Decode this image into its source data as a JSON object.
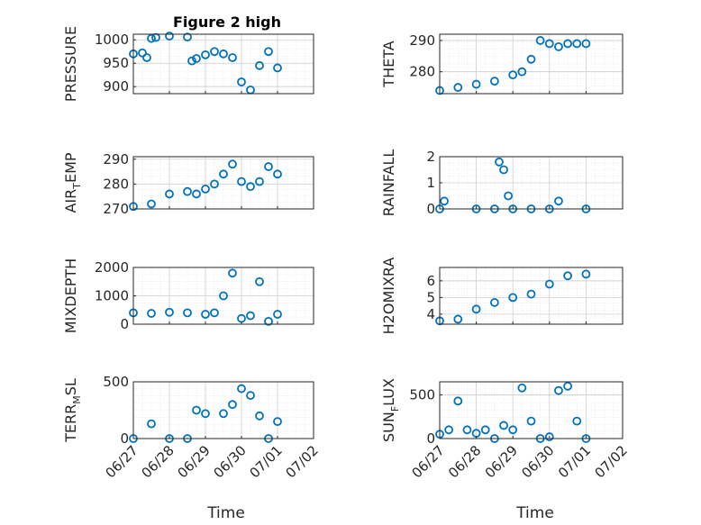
{
  "figure": {
    "title": "Figure 2 high",
    "xlabel": "Time"
  },
  "style": {
    "marker_color": "#0072BD",
    "axis_color": "#262626",
    "grid_color": "#dcdcdc",
    "minor_grid": true,
    "marker": "open-circle"
  },
  "x_axis": {
    "ticks": [
      "06/27",
      "06/28",
      "06/29",
      "06/30",
      "07/01",
      "07/02"
    ],
    "range": [
      "06/27",
      "07/02"
    ]
  },
  "chart_data": [
    {
      "type": "scatter",
      "ylabel": "PRESSURE",
      "ylim": [
        885,
        1012
      ],
      "yticks": [
        900,
        950,
        1000
      ],
      "x": [
        "06/27 00:00",
        "06/27 06:00",
        "06/27 09:00",
        "06/27 12:00",
        "06/27 15:00",
        "06/28 00:00",
        "06/28 12:00",
        "06/28 15:00",
        "06/28 18:00",
        "06/29 00:00",
        "06/29 06:00",
        "06/29 12:00",
        "06/29 18:00",
        "06/30 00:00",
        "06/30 06:00",
        "06/30 12:00",
        "06/30 18:00",
        "07/01 00:00"
      ],
      "y": [
        970,
        972,
        962,
        1003,
        1005,
        1008,
        1006,
        955,
        960,
        968,
        975,
        970,
        962,
        910,
        893,
        945,
        975,
        940
      ]
    },
    {
      "type": "scatter",
      "ylabel": "THETA",
      "ylim": [
        273,
        292
      ],
      "yticks": [
        280,
        290
      ],
      "x": [
        "06/27 00:00",
        "06/27 12:00",
        "06/28 00:00",
        "06/28 12:00",
        "06/29 00:00",
        "06/29 06:00",
        "06/29 12:00",
        "06/29 18:00",
        "06/30 00:00",
        "06/30 06:00",
        "06/30 12:00",
        "06/30 18:00",
        "07/01 00:00"
      ],
      "y": [
        274,
        275,
        276,
        277,
        279,
        280,
        284,
        290,
        289,
        288,
        289,
        289,
        289
      ]
    },
    {
      "type": "scatter",
      "ylabel": "AIR_TEMP",
      "ylim": [
        270,
        291
      ],
      "yticks": [
        270,
        280,
        290
      ],
      "x": [
        "06/27 00:00",
        "06/27 12:00",
        "06/28 00:00",
        "06/28 12:00",
        "06/28 18:00",
        "06/29 00:00",
        "06/29 06:00",
        "06/29 12:00",
        "06/29 18:00",
        "06/30 00:00",
        "06/30 06:00",
        "06/30 12:00",
        "06/30 18:00",
        "07/01 00:00"
      ],
      "y": [
        271,
        272,
        276,
        277,
        276,
        278,
        280,
        284,
        288,
        281,
        279,
        281,
        287,
        284
      ]
    },
    {
      "type": "scatter",
      "ylabel": "RAINFALL",
      "ylim": [
        0,
        2
      ],
      "yticks": [
        0,
        1,
        2
      ],
      "x": [
        "06/27 00:00",
        "06/27 03:00",
        "06/28 00:00",
        "06/28 12:00",
        "06/28 15:00",
        "06/28 18:00",
        "06/28 21:00",
        "06/29 00:00",
        "06/29 12:00",
        "06/30 00:00",
        "06/30 06:00",
        "07/01 00:00"
      ],
      "y": [
        0,
        0.3,
        0,
        0,
        1.8,
        1.5,
        0.5,
        0,
        0,
        0,
        0.3,
        0
      ]
    },
    {
      "type": "scatter",
      "ylabel": "MIXDEPTH",
      "ylim": [
        0,
        2000
      ],
      "yticks": [
        0,
        1000,
        2000
      ],
      "x": [
        "06/27 00:00",
        "06/27 12:00",
        "06/28 00:00",
        "06/28 12:00",
        "06/29 00:00",
        "06/29 06:00",
        "06/29 12:00",
        "06/29 18:00",
        "06/30 00:00",
        "06/30 06:00",
        "06/30 12:00",
        "06/30 18:00",
        "07/01 00:00"
      ],
      "y": [
        400,
        380,
        420,
        400,
        350,
        400,
        1000,
        1800,
        200,
        300,
        1500,
        100,
        350
      ]
    },
    {
      "type": "scatter",
      "ylabel": "H2OMIXRA",
      "ylim": [
        3.4,
        6.8
      ],
      "yticks": [
        4,
        5,
        6
      ],
      "x": [
        "06/27 00:00",
        "06/27 12:00",
        "06/28 00:00",
        "06/28 12:00",
        "06/29 00:00",
        "06/29 12:00",
        "06/30 00:00",
        "06/30 12:00",
        "07/01 00:00"
      ],
      "y": [
        3.6,
        3.7,
        4.3,
        4.7,
        5.0,
        5.2,
        5.8,
        6.3,
        6.4
      ]
    },
    {
      "type": "scatter",
      "ylabel": "TERR_MSL",
      "ylim": [
        0,
        500
      ],
      "yticks": [
        0,
        500
      ],
      "x": [
        "06/27 00:00",
        "06/27 12:00",
        "06/28 00:00",
        "06/28 12:00",
        "06/28 18:00",
        "06/29 00:00",
        "06/29 12:00",
        "06/29 18:00",
        "06/30 00:00",
        "06/30 06:00",
        "06/30 12:00",
        "06/30 18:00",
        "07/01 00:00"
      ],
      "y": [
        0,
        130,
        0,
        0,
        250,
        220,
        220,
        300,
        440,
        380,
        200,
        0,
        150
      ]
    },
    {
      "type": "scatter",
      "ylabel": "SUN_FLUX",
      "ylim": [
        0,
        650
      ],
      "yticks": [
        0,
        500
      ],
      "x": [
        "06/27 00:00",
        "06/27 06:00",
        "06/27 12:00",
        "06/27 18:00",
        "06/28 00:00",
        "06/28 06:00",
        "06/28 12:00",
        "06/28 18:00",
        "06/29 00:00",
        "06/29 06:00",
        "06/29 12:00",
        "06/29 18:00",
        "06/30 00:00",
        "06/30 06:00",
        "06/30 12:00",
        "06/30 18:00",
        "07/01 00:00"
      ],
      "y": [
        50,
        100,
        430,
        100,
        60,
        100,
        0,
        150,
        100,
        580,
        200,
        0,
        20,
        550,
        600,
        200,
        0
      ]
    }
  ]
}
